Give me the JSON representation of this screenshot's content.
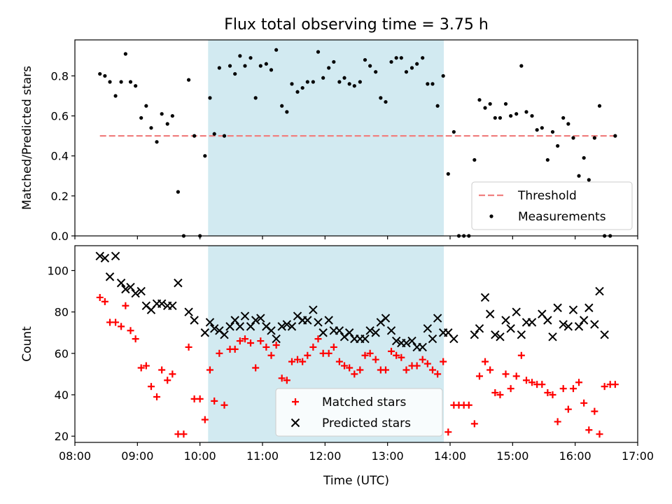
{
  "figure": {
    "title": "Flux total observing time = 3.75 h"
  },
  "chart_data": [
    {
      "type": "scatter",
      "panel": "top",
      "ylabel": "Matched/Predicted stars",
      "xlim": [
        8.0,
        17.0
      ],
      "ylim": [
        0.0,
        0.98
      ],
      "yticks": [
        0.0,
        0.2,
        0.4,
        0.6,
        0.8
      ],
      "legend": {
        "placement": "lower-right",
        "entries": [
          "Threshold",
          "Measurements"
        ]
      },
      "shaded_region": {
        "x": [
          10.13,
          13.9
        ],
        "color": "#add8e6"
      },
      "threshold": {
        "name": "Threshold",
        "x": [
          8.4,
          16.65
        ],
        "y": 0.5,
        "color": "#f08080",
        "style": "dashed"
      },
      "series": [
        {
          "name": "Measurements",
          "color": "#000000",
          "marker": "dot",
          "x": [
            8.4,
            8.48,
            8.56,
            8.65,
            8.74,
            8.81,
            8.89,
            8.97,
            9.06,
            9.14,
            9.22,
            9.31,
            9.39,
            9.48,
            9.56,
            9.65,
            9.74,
            9.82,
            9.91,
            10.0,
            10.08,
            10.16,
            10.23,
            10.31,
            10.39,
            10.48,
            10.56,
            10.64,
            10.72,
            10.81,
            10.89,
            10.97,
            11.06,
            11.14,
            11.22,
            11.31,
            11.39,
            11.47,
            11.56,
            11.64,
            11.72,
            11.81,
            11.89,
            11.97,
            12.06,
            12.14,
            12.23,
            12.31,
            12.39,
            12.47,
            12.56,
            12.64,
            12.72,
            12.81,
            12.89,
            12.97,
            13.06,
            13.14,
            13.22,
            13.3,
            13.39,
            13.47,
            13.56,
            13.64,
            13.72,
            13.8,
            13.89,
            13.97,
            14.06,
            14.14,
            14.22,
            14.3,
            14.39,
            14.47,
            14.56,
            14.64,
            14.72,
            14.8,
            14.89,
            14.97,
            15.06,
            15.14,
            15.22,
            15.31,
            15.39,
            15.47,
            15.56,
            15.64,
            15.72,
            15.81,
            15.89,
            15.97,
            16.06,
            16.14,
            16.22,
            16.31,
            16.39,
            16.47,
            16.56,
            16.64
          ],
          "y": [
            0.81,
            0.8,
            0.77,
            0.7,
            0.77,
            0.91,
            0.77,
            0.75,
            0.59,
            0.65,
            0.54,
            0.47,
            0.61,
            0.56,
            0.6,
            0.22,
            0.0,
            0.78,
            0.5,
            0.0,
            0.4,
            0.69,
            0.51,
            0.84,
            0.5,
            0.85,
            0.81,
            0.9,
            0.85,
            0.89,
            0.69,
            0.85,
            0.86,
            0.83,
            0.93,
            0.65,
            0.62,
            0.76,
            0.72,
            0.74,
            0.77,
            0.77,
            0.92,
            0.79,
            0.84,
            0.87,
            0.77,
            0.79,
            0.76,
            0.75,
            0.77,
            0.88,
            0.85,
            0.82,
            0.69,
            0.67,
            0.87,
            0.89,
            0.89,
            0.82,
            0.84,
            0.86,
            0.89,
            0.76,
            0.76,
            0.65,
            0.8,
            0.31,
            0.52,
            0.0,
            0.0,
            0.0,
            0.38,
            0.68,
            0.64,
            0.66,
            0.59,
            0.59,
            0.66,
            0.6,
            0.61,
            0.85,
            0.62,
            0.6,
            0.53,
            0.54,
            0.38,
            0.52,
            0.45,
            0.59,
            0.56,
            0.49,
            0.3,
            0.39,
            0.28,
            0.49,
            0.65,
            0.0,
            0.0,
            0.5
          ]
        }
      ]
    },
    {
      "type": "scatter",
      "panel": "bottom",
      "xlabel": "Time (UTC)",
      "ylabel": "Count",
      "xlim": [
        8.0,
        17.0
      ],
      "ylim": [
        17,
        112
      ],
      "xticks": [
        "08:00",
        "09:00",
        "10:00",
        "11:00",
        "12:00",
        "13:00",
        "14:00",
        "15:00",
        "16:00",
        "17:00"
      ],
      "yticks": [
        20,
        40,
        60,
        80,
        100
      ],
      "legend": {
        "placement": "lower-center",
        "entries": [
          "Matched stars",
          "Predicted stars"
        ]
      },
      "shaded_region": {
        "x": [
          10.13,
          13.9
        ],
        "color": "#add8e6"
      },
      "series": [
        {
          "name": "Matched stars",
          "color": "#ff0000",
          "marker": "plus",
          "x": [
            8.4,
            8.48,
            8.56,
            8.65,
            8.74,
            8.81,
            8.89,
            8.97,
            9.06,
            9.14,
            9.22,
            9.31,
            9.39,
            9.48,
            9.56,
            9.65,
            9.74,
            9.82,
            9.91,
            10.0,
            10.08,
            10.16,
            10.23,
            10.31,
            10.39,
            10.48,
            10.56,
            10.64,
            10.72,
            10.81,
            10.89,
            10.97,
            11.06,
            11.14,
            11.22,
            11.31,
            11.39,
            11.47,
            11.56,
            11.64,
            11.72,
            11.81,
            11.89,
            11.97,
            12.06,
            12.14,
            12.23,
            12.31,
            12.39,
            12.47,
            12.56,
            12.64,
            12.72,
            12.81,
            12.89,
            12.97,
            13.06,
            13.14,
            13.22,
            13.3,
            13.39,
            13.47,
            13.56,
            13.64,
            13.72,
            13.8,
            13.89,
            13.97,
            14.06,
            14.14,
            14.22,
            14.3,
            14.39,
            14.47,
            14.56,
            14.64,
            14.72,
            14.8,
            14.89,
            14.97,
            15.06,
            15.14,
            15.22,
            15.31,
            15.39,
            15.47,
            15.56,
            15.64,
            15.72,
            15.81,
            15.89,
            15.97,
            16.06,
            16.14,
            16.22,
            16.31,
            16.39,
            16.47,
            16.56,
            16.64
          ],
          "y": [
            87,
            85,
            75,
            75,
            73,
            83,
            71,
            67,
            53,
            54,
            44,
            39,
            52,
            47,
            50,
            21,
            21,
            63,
            38,
            38,
            28,
            52,
            37,
            60,
            35,
            62,
            62,
            66,
            67,
            65,
            53,
            66,
            63,
            59,
            64,
            48,
            47,
            56,
            57,
            56,
            59,
            63,
            67,
            60,
            60,
            63,
            56,
            54,
            53,
            50,
            52,
            59,
            60,
            57,
            52,
            52,
            61,
            59,
            58,
            52,
            54,
            54,
            57,
            55,
            52,
            50,
            56,
            22,
            35,
            35,
            35,
            35,
            26,
            49,
            56,
            52,
            41,
            40,
            50,
            43,
            49,
            59,
            47,
            46,
            45,
            45,
            41,
            40,
            27,
            43,
            33,
            43,
            46,
            36,
            23,
            32,
            21,
            44,
            45,
            45
          ]
        },
        {
          "name": "Predicted stars",
          "color": "#000000",
          "marker": "x",
          "x": [
            8.4,
            8.48,
            8.56,
            8.65,
            8.74,
            8.81,
            8.89,
            8.97,
            9.06,
            9.14,
            9.22,
            9.31,
            9.39,
            9.48,
            9.56,
            9.65,
            9.82,
            9.91,
            10.08,
            10.16,
            10.23,
            10.31,
            10.39,
            10.48,
            10.56,
            10.64,
            10.72,
            10.81,
            10.89,
            10.97,
            11.06,
            11.14,
            11.22,
            11.31,
            11.39,
            11.47,
            11.56,
            11.64,
            11.72,
            11.81,
            11.89,
            11.97,
            12.06,
            12.14,
            12.23,
            12.31,
            12.39,
            12.47,
            12.56,
            12.64,
            12.72,
            12.81,
            12.89,
            12.97,
            13.06,
            13.14,
            13.22,
            13.3,
            13.39,
            13.47,
            13.56,
            13.64,
            13.72,
            13.8,
            13.89,
            13.97,
            14.06,
            14.39,
            14.47,
            14.56,
            14.64,
            14.72,
            14.8,
            14.89,
            14.97,
            15.06,
            15.14,
            15.22,
            15.31,
            15.47,
            15.56,
            15.64,
            15.72,
            15.81,
            15.89,
            15.97,
            16.06,
            16.14,
            16.22,
            16.31,
            16.39,
            16.47
          ],
          "y": [
            107,
            106,
            97,
            107,
            94,
            91,
            92,
            89,
            90,
            83,
            81,
            84,
            84,
            83,
            83,
            94,
            80,
            76,
            70,
            75,
            72,
            71,
            69,
            73,
            76,
            73,
            78,
            73,
            76,
            77,
            73,
            71,
            67,
            73,
            74,
            73,
            78,
            76,
            76,
            81,
            75,
            70,
            76,
            71,
            71,
            68,
            70,
            67,
            67,
            67,
            71,
            70,
            75,
            77,
            71,
            66,
            65,
            65,
            66,
            63,
            63,
            72,
            67,
            77,
            70,
            70,
            67,
            69,
            72,
            87,
            79,
            69,
            68,
            76,
            72,
            80,
            69,
            75,
            75,
            79,
            76,
            68,
            82,
            74,
            73,
            81,
            73,
            76,
            82,
            74,
            90,
            69
          ]
        }
      ]
    }
  ]
}
